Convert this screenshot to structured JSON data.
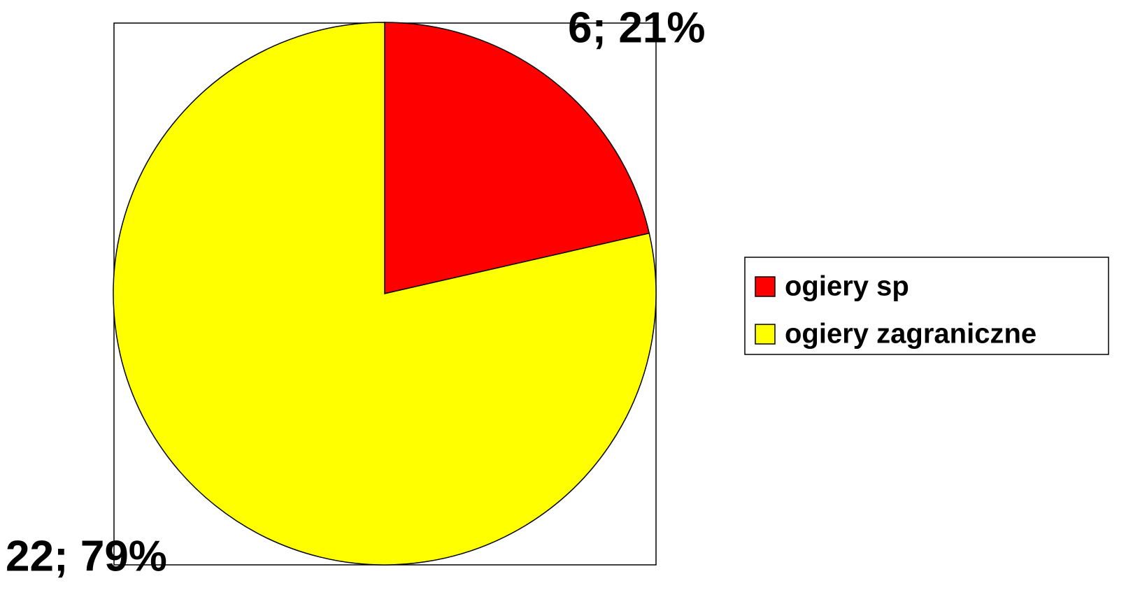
{
  "chart_data": {
    "type": "pie",
    "categories": [
      "ogiery sp",
      "ogiery zagraniczne"
    ],
    "values": [
      6,
      22
    ],
    "value_labels": [
      "6; 21%",
      "22; 79%"
    ],
    "colors": [
      "#ff0000",
      "#ffff00"
    ],
    "legend": "right"
  }
}
